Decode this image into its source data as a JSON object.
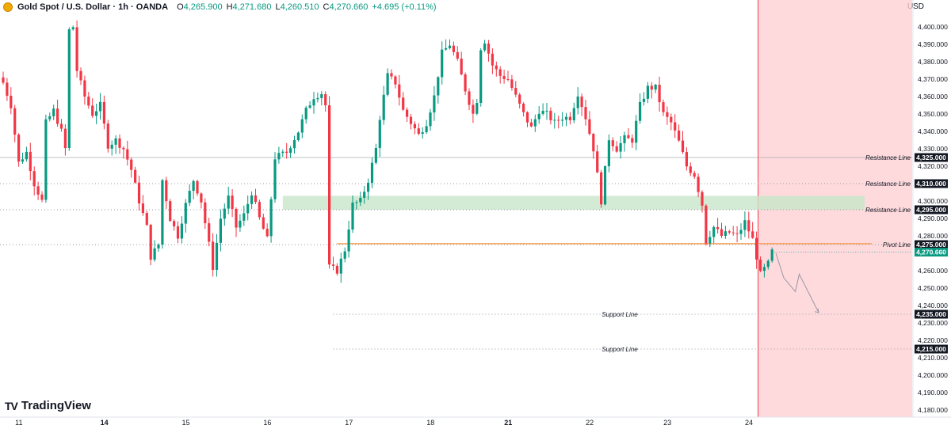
{
  "header": {
    "title": "Gold Spot / U.S. Dollar · 1h · OANDA",
    "open_label": "O",
    "open_value": "4,265.900",
    "high_label": "H",
    "high_value": "4,271.680",
    "low_label": "L",
    "low_value": "4,260.510",
    "close_label": "C",
    "close_value": "4,270.660",
    "change_value": "+4.695 (+0.11%)"
  },
  "axis_unit": "USD",
  "brand": "TradingView",
  "colors": {
    "up": "#089981",
    "down": "#f23645",
    "zone_support": "#c8e6c9",
    "zone_future": "#ffcdd2",
    "pivot": "#f5a25d"
  },
  "chart_data": {
    "type": "candlestick",
    "title": "",
    "ylim": [
      4176,
      4412
    ],
    "y_ticks": [
      4180,
      4190,
      4200,
      4210,
      4220,
      4230,
      4240,
      4250,
      4260,
      4270,
      4280,
      4290,
      4300,
      4310,
      4320,
      4330,
      4340,
      4350,
      4360,
      4370,
      4380,
      4390,
      4400
    ],
    "y_tick_labels": [
      "4,180.000",
      "4,190.000",
      "4,200.000",
      "4,210.000",
      "4,220.000",
      "4,230.000",
      "4,240.000",
      "4,250.000",
      "4,260.000",
      "4,270.000",
      "4,280.000",
      "4,290.000",
      "4,300.000",
      "4,310.000",
      "4,320.000",
      "4,330.000",
      "4,340.000",
      "4,350.000",
      "4,360.000",
      "4,370.000",
      "4,380.000",
      "4,390.000",
      "4,400.000"
    ],
    "x_labels": [
      "11",
      "14",
      "15",
      "16",
      "17",
      "18",
      "21",
      "22",
      "23",
      "24"
    ],
    "x_labels_bold": [
      false,
      true,
      false,
      false,
      false,
      false,
      true,
      false,
      false,
      false
    ],
    "x_label_index": [
      2,
      24,
      45,
      66,
      87,
      108,
      128,
      149,
      169,
      190
    ],
    "bar_count": 199,
    "anchors": [
      [
        0,
        4368
      ],
      [
        2,
        4355
      ],
      [
        4,
        4322
      ],
      [
        6,
        4328
      ],
      [
        8,
        4310
      ],
      [
        10,
        4300
      ],
      [
        11,
        4345
      ],
      [
        13,
        4352
      ],
      [
        15,
        4340
      ],
      [
        16,
        4330
      ],
      [
        17,
        4398
      ],
      [
        18,
        4400
      ],
      [
        19,
        4375
      ],
      [
        21,
        4360
      ],
      [
        23,
        4350
      ],
      [
        25,
        4355
      ],
      [
        27,
        4332
      ],
      [
        29,
        4335
      ],
      [
        31,
        4330
      ],
      [
        33,
        4318
      ],
      [
        35,
        4300
      ],
      [
        37,
        4285
      ],
      [
        38,
        4268
      ],
      [
        40,
        4275
      ],
      [
        41,
        4312
      ],
      [
        43,
        4290
      ],
      [
        45,
        4280
      ],
      [
        47,
        4298
      ],
      [
        49,
        4312
      ],
      [
        51,
        4300
      ],
      [
        53,
        4275
      ],
      [
        54,
        4262
      ],
      [
        56,
        4290
      ],
      [
        58,
        4302
      ],
      [
        60,
        4285
      ],
      [
        62,
        4292
      ],
      [
        64,
        4305
      ],
      [
        66,
        4290
      ],
      [
        68,
        4278
      ],
      [
        70,
        4325
      ],
      [
        73,
        4328
      ],
      [
        76,
        4340
      ],
      [
        78,
        4352
      ],
      [
        80,
        4360
      ],
      [
        82,
        4362
      ],
      [
        83,
        4355
      ],
      [
        84,
        4262
      ],
      [
        86,
        4260
      ],
      [
        88,
        4272
      ],
      [
        90,
        4298
      ],
      [
        92,
        4300
      ],
      [
        94,
        4312
      ],
      [
        96,
        4330
      ],
      [
        97,
        4348
      ],
      [
        99,
        4372
      ],
      [
        101,
        4368
      ],
      [
        103,
        4352
      ],
      [
        105,
        4345
      ],
      [
        107,
        4338
      ],
      [
        109,
        4345
      ],
      [
        111,
        4360
      ],
      [
        113,
        4385
      ],
      [
        115,
        4390
      ],
      [
        117,
        4380
      ],
      [
        119,
        4364
      ],
      [
        121,
        4350
      ],
      [
        122,
        4358
      ],
      [
        123,
        4388
      ],
      [
        124,
        4392
      ],
      [
        126,
        4378
      ],
      [
        128,
        4372
      ],
      [
        130,
        4370
      ],
      [
        132,
        4360
      ],
      [
        134,
        4350
      ],
      [
        136,
        4342
      ],
      [
        138,
        4352
      ],
      [
        140,
        4350
      ],
      [
        142,
        4345
      ],
      [
        144,
        4348
      ],
      [
        146,
        4348
      ],
      [
        148,
        4362
      ],
      [
        150,
        4348
      ],
      [
        152,
        4330
      ],
      [
        154,
        4300
      ],
      [
        156,
        4336
      ],
      [
        158,
        4330
      ],
      [
        160,
        4336
      ],
      [
        162,
        4335
      ],
      [
        164,
        4355
      ],
      [
        166,
        4365
      ],
      [
        168,
        4365
      ],
      [
        170,
        4350
      ],
      [
        172,
        4345
      ],
      [
        174,
        4334
      ],
      [
        176,
        4320
      ],
      [
        178,
        4315
      ],
      [
        180,
        4298
      ],
      [
        181,
        4277
      ],
      [
        183,
        4285
      ],
      [
        185,
        4280
      ],
      [
        187,
        4282
      ],
      [
        189,
        4280
      ],
      [
        191,
        4288
      ],
      [
        193,
        4278
      ],
      [
        195,
        4258
      ],
      [
        197,
        4264
      ],
      [
        198,
        4271
      ]
    ],
    "last_price": 4270.66,
    "last_price_label": "4,270.660",
    "levels": [
      {
        "price": 4325,
        "price_label": "4,325.000",
        "label": "Resistance Line",
        "style": "solid"
      },
      {
        "price": 4310,
        "price_label": "4,310.000",
        "label": "Resistance Line",
        "style": "dotted"
      },
      {
        "price": 4295,
        "price_label": "4,295.000",
        "label": "Resistance Line",
        "style": "dotted"
      },
      {
        "price": 4275,
        "price_label": "4,275.000",
        "label": "Pivot Line",
        "style": "dotted"
      },
      {
        "price": 4235,
        "price_label": "4,235.000",
        "label": "Support Line",
        "style": "dotted"
      },
      {
        "price": 4215,
        "price_label": "4,215.000",
        "label": "Support Line",
        "style": "dotted"
      }
    ],
    "support_zone": {
      "from_bar": 72,
      "to_bar": "end",
      "y_low": 4295,
      "y_high": 4303
    },
    "pivot_line": {
      "from_bar": 86,
      "price": 4275.5
    },
    "forecast_path": [
      [
        199,
        4270
      ],
      [
        201,
        4256
      ],
      [
        204,
        4248
      ],
      [
        205,
        4258
      ],
      [
        210,
        4236
      ]
    ],
    "forecast_start_bar": 194
  }
}
